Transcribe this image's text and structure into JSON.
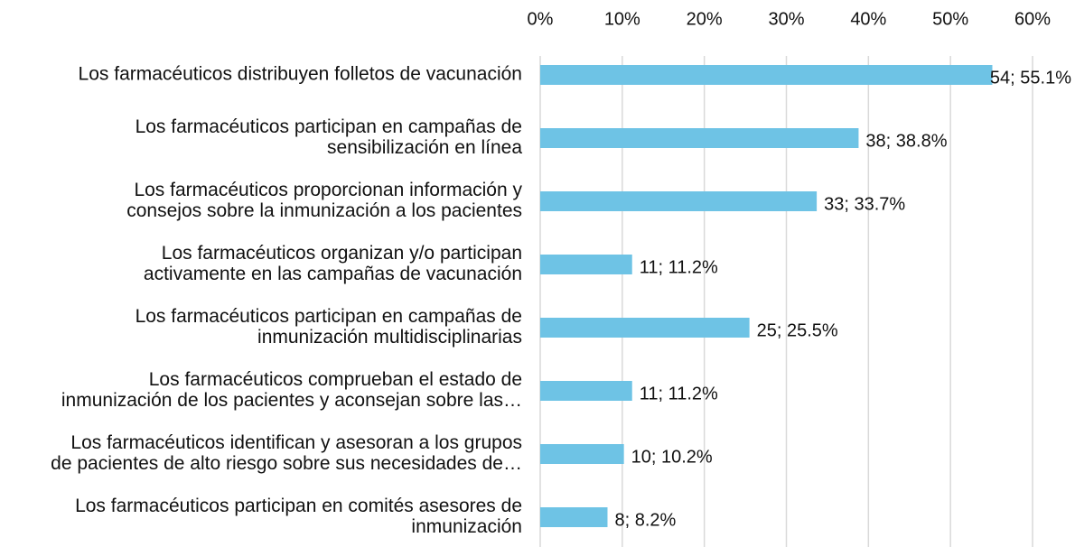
{
  "chart_data": {
    "type": "bar",
    "orientation": "horizontal",
    "categories": [
      [
        "Los farmacéuticos distribuyen folletos de vacunación"
      ],
      [
        "Los farmacéuticos participan en campañas de",
        "sensibilización en línea"
      ],
      [
        "Los farmacéuticos proporcionan información y",
        "consejos sobre la inmunización a los pacientes"
      ],
      [
        "Los farmacéuticos organizan y/o participan",
        "activamente en las campañas de vacunación"
      ],
      [
        "Los farmacéuticos participan en campañas de",
        "inmunización multidisciplinarias"
      ],
      [
        "Los farmacéuticos comprueban el estado de",
        "inmunización de los pacientes y aconsejan sobre las…"
      ],
      [
        "Los farmacéuticos identifican y asesoran a los grupos",
        "de pacientes de alto riesgo sobre sus necesidades de…"
      ],
      [
        "Los farmacéuticos participan en comités asesores de",
        "inmunización"
      ]
    ],
    "values": [
      55.1,
      38.8,
      33.7,
      11.2,
      25.5,
      11.2,
      10.2,
      8.2
    ],
    "value_labels": [
      "54; 55.1%",
      "38; 38.8%",
      "33; 33.7%",
      "11; 11.2%",
      "25; 25.5%",
      "11; 11.2%",
      "10; 10.2%",
      "8; 8.2%"
    ],
    "color": "#6ec3e5",
    "xlim": [
      0,
      60
    ],
    "xticks": [
      {
        "value": 0,
        "label": "0%"
      },
      {
        "value": 10,
        "label": "10%"
      },
      {
        "value": 20,
        "label": "20%"
      },
      {
        "value": 30,
        "label": "30%"
      },
      {
        "value": 40,
        "label": "40%"
      },
      {
        "value": 50,
        "label": "50%"
      },
      {
        "value": 60,
        "label": "60%"
      }
    ],
    "grid": true
  }
}
